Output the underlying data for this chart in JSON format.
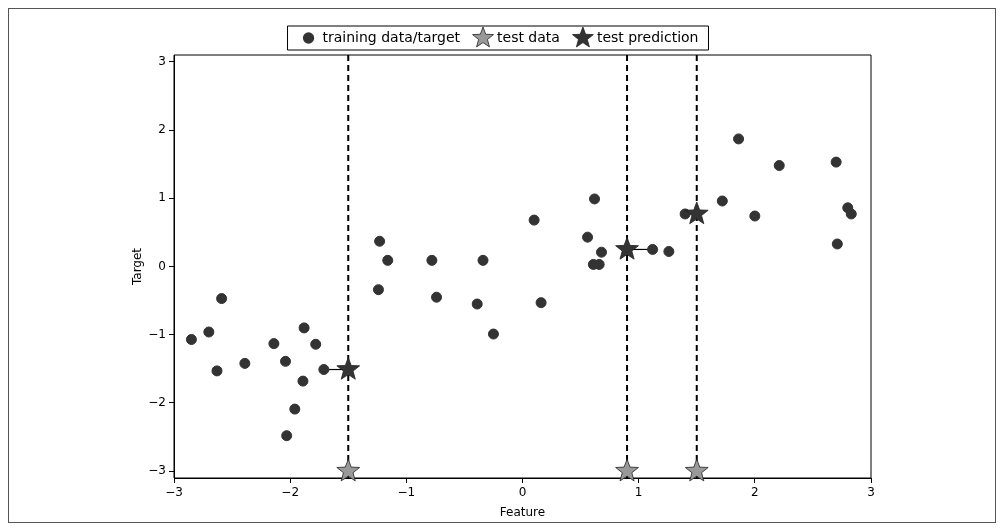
{
  "chart_data": {
    "type": "scatter",
    "xlabel": "Feature",
    "ylabel": "Target",
    "xlim": [
      -3,
      3
    ],
    "ylim": [
      -3.1,
      3.1
    ],
    "xticks": [
      {
        "value": -3,
        "label": "−3"
      },
      {
        "value": -2,
        "label": "−2"
      },
      {
        "value": -1,
        "label": "−1"
      },
      0,
      1,
      2,
      3
    ],
    "yticks": [
      {
        "value": -3,
        "label": "−3"
      },
      {
        "value": -2,
        "label": "−2"
      },
      {
        "value": -1,
        "label": "−1"
      },
      0,
      1,
      2,
      3
    ],
    "grid": false,
    "legend": "top",
    "series": [
      {
        "name": "training data/target",
        "marker": "circle",
        "color": "#333333",
        "x": [
          -2.85,
          -2.7,
          -2.63,
          -2.59,
          -2.39,
          -2.14,
          -2.04,
          -2.03,
          -1.96,
          -1.88,
          -1.89,
          -1.78,
          -1.71,
          -1.23,
          -1.16,
          -1.24,
          -0.78,
          -0.34,
          -0.74,
          -0.39,
          0.16,
          -0.25,
          0.1,
          0.62,
          0.56,
          0.68,
          0.61,
          0.66,
          1.12,
          1.26,
          1.4,
          1.72,
          2.0,
          1.86,
          2.21,
          2.7,
          2.8,
          2.83,
          2.71
        ],
        "values": [
          -1.07,
          -0.96,
          -1.53,
          -0.47,
          -1.42,
          -1.13,
          -1.39,
          -2.48,
          -2.09,
          -0.9,
          -1.68,
          -1.14,
          -1.51,
          0.37,
          0.09,
          -0.34,
          0.09,
          0.09,
          -0.45,
          -0.55,
          -0.53,
          -0.99,
          0.68,
          0.99,
          0.43,
          0.21,
          0.03,
          0.03,
          0.25,
          0.22,
          0.77,
          0.96,
          0.74,
          1.87,
          1.48,
          1.53,
          0.86,
          0.77,
          0.33
        ]
      },
      {
        "name": "test data",
        "marker": "star",
        "color": "#999999",
        "x": [
          -1.5,
          0.9,
          1.5
        ],
        "values": [
          -3,
          -3,
          -3
        ]
      },
      {
        "name": "test prediction",
        "marker": "star",
        "color": "#333333",
        "x": [
          -1.5,
          0.9,
          1.5
        ],
        "values": [
          -1.51,
          0.25,
          0.77
        ]
      },
      {
        "type": "line",
        "marker": "none",
        "color": "#000000",
        "x": [
          -1.71,
          -1.5
        ],
        "values": [
          -1.51,
          -1.51
        ]
      },
      {
        "type": "line",
        "marker": "none",
        "color": "#000000",
        "x": [
          0.9,
          1.12
        ],
        "values": [
          0.25,
          0.25
        ]
      }
    ],
    "ref_lines": [
      {
        "axis": "x",
        "value": -1.5,
        "color": "#000000",
        "line_style": "dashed"
      },
      {
        "axis": "x",
        "value": 0.9,
        "color": "#000000",
        "line_style": "dashed"
      },
      {
        "axis": "x",
        "value": 1.5,
        "color": "#000000",
        "line_style": "dashed"
      }
    ]
  }
}
